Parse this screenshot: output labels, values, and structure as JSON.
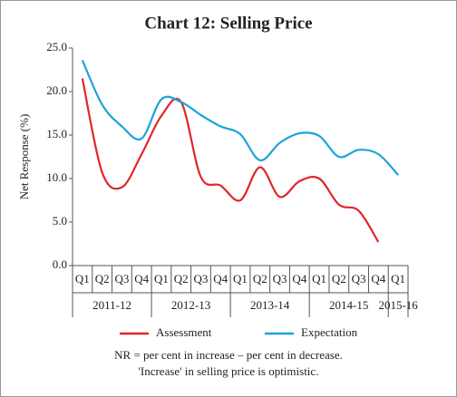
{
  "chart_data": {
    "type": "line",
    "title": "Chart 12: Selling Price",
    "y_label": "Net Response (%)",
    "categories": [
      "Q1",
      "Q2",
      "Q3",
      "Q4",
      "Q1",
      "Q2",
      "Q3",
      "Q4",
      "Q1",
      "Q2",
      "Q3",
      "Q4",
      "Q1",
      "Q2",
      "Q3",
      "Q4",
      "Q1"
    ],
    "x_groups": [
      "2011-12",
      "2012-13",
      "2013-14",
      "2014-15",
      "2015-16"
    ],
    "series": [
      {
        "name": "Assessment",
        "color": "#e0262b",
        "values": [
          21.5,
          10.7,
          9.0,
          12.8,
          17.2,
          18.8,
          10.2,
          9.2,
          7.5,
          11.3,
          7.9,
          9.7,
          10.0,
          7.0,
          6.3,
          2.7,
          null
        ]
      },
      {
        "name": "Expectation",
        "color": "#1aa3dc",
        "values": [
          23.6,
          18.5,
          16.0,
          14.6,
          19.1,
          18.8,
          17.3,
          16.0,
          15.1,
          12.1,
          14.1,
          15.2,
          14.9,
          12.5,
          13.3,
          12.8,
          10.4
        ]
      }
    ],
    "ylim": [
      0,
      25
    ],
    "yticks": [
      {
        "value": 0,
        "label": "0.0"
      },
      {
        "value": 5,
        "label": "5.0"
      },
      {
        "value": 10,
        "label": "10.0"
      },
      {
        "value": 15,
        "label": "15.0"
      },
      {
        "value": 20,
        "label": "20.0"
      },
      {
        "value": 25,
        "label": "25.0"
      }
    ],
    "legend": "bottom",
    "notes": [
      "NR = per cent in increase – per cent in decrease.",
      "'Increase' in selling price is optimistic."
    ]
  }
}
